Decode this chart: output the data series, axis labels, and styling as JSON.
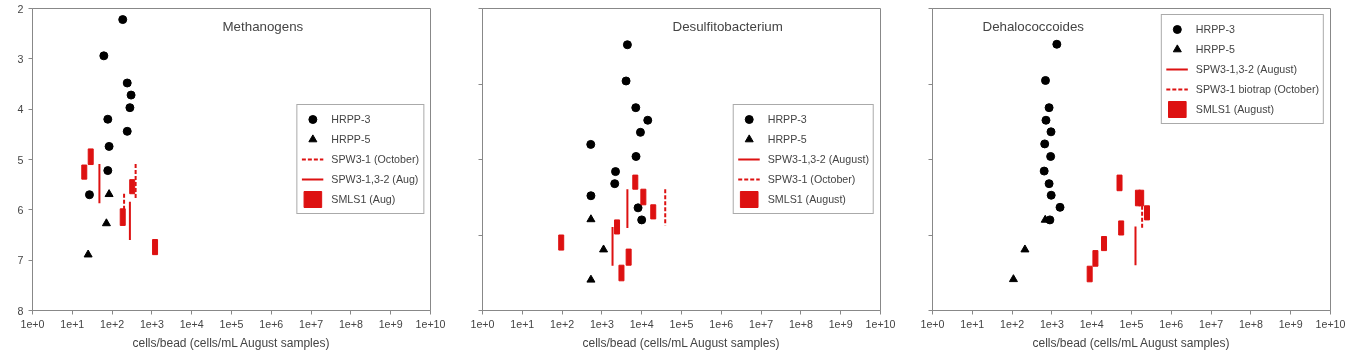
{
  "chart_data": [
    {
      "type": "scatter",
      "title": "Methanogens",
      "xlabel": "cells/bead (cells/mL August samples)",
      "log": "x",
      "xlim": [
        1,
        10000000000
      ],
      "ylim": [
        8,
        2
      ],
      "legend": "right",
      "xticks": [
        {
          "value": 1,
          "label": "1e+0"
        },
        {
          "value": 10,
          "label": "1e+1"
        },
        {
          "value": 100,
          "label": "1e+2"
        },
        {
          "value": 1000,
          "label": "1e+3"
        },
        {
          "value": 10000,
          "label": "1e+4"
        },
        {
          "value": 100000,
          "label": "1e+5"
        },
        {
          "value": 1000000,
          "label": "1e+6"
        },
        {
          "value": 10000000,
          "label": "1e+7"
        },
        {
          "value": 100000000,
          "label": "1e+8"
        },
        {
          "value": 1000000000,
          "label": "1e+9"
        },
        {
          "value": 10000000000,
          "label": "1e+10"
        }
      ],
      "yticks": [
        2,
        3,
        4,
        5,
        6,
        7,
        8
      ],
      "series": [
        {
          "name": "HRPP-3",
          "marker": "circle",
          "color": "#000000",
          "x": [
            185,
            62,
            240,
            300,
            280,
            78,
            240,
            84,
            78,
            27
          ],
          "values": [
            2.22,
            2.94,
            3.48,
            3.72,
            3.97,
            4.2,
            4.44,
            4.74,
            5.22,
            5.7
          ]
        },
        {
          "name": "HRPP-5",
          "marker": "triangle",
          "color": "#000000",
          "x": [
            84,
            72,
            25
          ],
          "values": [
            5.69,
            6.27,
            6.89
          ]
        },
        {
          "name": "SPW3-1 (October)",
          "type": "line",
          "line_style": "dashed",
          "color": "#dd1111",
          "x": [
            390,
            390,
            null,
            200,
            200
          ],
          "values": [
            5.09,
            5.78,
            null,
            5.68,
            5.99
          ]
        },
        {
          "name": "SPW3-1,3-2 (Aug)",
          "type": "line",
          "line_style": "solid",
          "color": "#dd1111",
          "x": [
            48,
            48,
            null,
            280,
            280
          ],
          "values": [
            5.09,
            5.87,
            null,
            5.84,
            6.6
          ]
        },
        {
          "name": "SMLS1 (Aug)",
          "type": "bar",
          "color": "#dd1111",
          "x": [
            20,
            29,
            185,
            320,
            1200
          ],
          "base": [
            5.11,
            4.79,
            5.98,
            5.4,
            6.59
          ],
          "values": [
            0.28,
            0.31,
            0.33,
            0.28,
            0.3
          ]
        }
      ]
    },
    {
      "type": "scatter",
      "title": "Desulfitobacterium",
      "xlabel": "cells/bead (cells/mL August samples)",
      "log": "x",
      "xlim": [
        1,
        10000000000
      ],
      "ylim": [
        8,
        2
      ],
      "legend": "right",
      "tick_labels": "x",
      "xticks": [
        {
          "value": 1,
          "label": "1e+0"
        },
        {
          "value": 10,
          "label": "1e+1"
        },
        {
          "value": 100,
          "label": "1e+2"
        },
        {
          "value": 1000,
          "label": "1e+3"
        },
        {
          "value": 10000,
          "label": "1e+4"
        },
        {
          "value": 100000,
          "label": "1e+5"
        },
        {
          "value": 1000000,
          "label": "1e+6"
        },
        {
          "value": 10000000,
          "label": "1e+7"
        },
        {
          "value": 100000000,
          "label": "1e+8"
        },
        {
          "value": 1000000000,
          "label": "1e+9"
        },
        {
          "value": 10000000000,
          "label": "1e+10"
        }
      ],
      "yticks": [
        {
          "value": 2,
          "label": null
        },
        {
          "value": 3.5,
          "label": null
        },
        {
          "value": 5,
          "label": null
        },
        {
          "value": 6.5,
          "label": null
        },
        {
          "value": 8,
          "label": null
        }
      ],
      "series": [
        {
          "name": "HRPP-3",
          "marker": "circle",
          "color": "#000000",
          "x": [
            4370,
            4050,
            7100,
            14200,
            9300,
            525,
            7200,
            2200,
            2100,
            530,
            8100,
            10000
          ],
          "values": [
            2.72,
            3.44,
            3.97,
            4.22,
            4.46,
            4.7,
            4.94,
            5.24,
            5.48,
            5.72,
            5.96,
            6.2
          ]
        },
        {
          "name": "HRPP-5",
          "marker": "triangle",
          "color": "#000000",
          "x": [
            530,
            1100,
            530
          ],
          "values": [
            6.19,
            6.79,
            7.39
          ]
        },
        {
          "name": "SPW3-1,3-2 (August)",
          "type": "line",
          "line_style": "solid",
          "color": "#dd1111",
          "x": [
            4370,
            4370,
            null,
            1850,
            1850
          ],
          "values": [
            5.59,
            6.36,
            null,
            6.34,
            7.11
          ]
        },
        {
          "name": "SPW3-1 (October)",
          "type": "line",
          "line_style": "dashed",
          "color": "#dd1111",
          "x": [
            39000,
            39000
          ],
          "values": [
            5.59,
            6.31
          ]
        },
        {
          "name": "SMLS1 (August)",
          "type": "bar",
          "color": "#dd1111",
          "x": [
            95,
            2400,
            3100,
            4700,
            6900,
            11000,
            19500
          ],
          "base": [
            6.5,
            6.2,
            7.1,
            6.78,
            5.31,
            5.59,
            5.9
          ],
          "values": [
            0.3,
            0.28,
            0.31,
            0.32,
            0.28,
            0.31,
            0.28
          ]
        }
      ]
    },
    {
      "type": "scatter",
      "title": "Dehalococcoides",
      "xlabel": "cells/bead (cells/mL August samples)",
      "log": "x",
      "xlim": [
        1,
        10000000000
      ],
      "ylim": [
        8,
        2
      ],
      "legend": "top right",
      "tick_labels": "x",
      "xticks": [
        {
          "value": 1,
          "label": "1e+0"
        },
        {
          "value": 10,
          "label": "1e+1"
        },
        {
          "value": 100,
          "label": "1e+2"
        },
        {
          "value": 1000,
          "label": "1e+3"
        },
        {
          "value": 10000,
          "label": "1e+4"
        },
        {
          "value": 100000,
          "label": "1e+5"
        },
        {
          "value": 1000000,
          "label": "1e+6"
        },
        {
          "value": 10000000,
          "label": "1e+7"
        },
        {
          "value": 100000000,
          "label": "1e+8"
        },
        {
          "value": 1000000000,
          "label": "1e+9"
        },
        {
          "value": 10000000000,
          "label": "1e+10"
        }
      ],
      "yticks": [
        {
          "value": 2,
          "label": null
        },
        {
          "value": 3.5,
          "label": null
        },
        {
          "value": 5,
          "label": null
        },
        {
          "value": 6.5,
          "label": null
        },
        {
          "value": 8,
          "label": null
        }
      ],
      "series": [
        {
          "name": "HRPP-3",
          "marker": "circle",
          "color": "#000000",
          "x": [
            1330,
            690,
            850,
            710,
            950,
            660,
            930,
            640,
            850,
            960,
            1600,
            890
          ],
          "values": [
            2.71,
            3.43,
            3.97,
            4.22,
            4.45,
            4.69,
            4.94,
            5.23,
            5.48,
            5.71,
            5.95,
            6.2
          ]
        },
        {
          "name": "HRPP-5",
          "marker": "triangle",
          "color": "#000000",
          "x": [
            680,
            210,
            108
          ],
          "values": [
            6.2,
            6.79,
            7.38
          ]
        },
        {
          "name": "SPW3-1,3-2 (August)",
          "type": "line",
          "line_style": "solid",
          "color": "#dd1111",
          "x": [
            126000,
            126000
          ],
          "values": [
            6.33,
            7.1
          ]
        },
        {
          "name": "SPW3-1 biotrap (October)",
          "type": "line",
          "line_style": "dashed",
          "color": "#dd1111",
          "x": [
            185000,
            185000
          ],
          "values": [
            5.92,
            6.36
          ]
        },
        {
          "name": "SMLS1 (August)",
          "type": "bar",
          "color": "#dd1111",
          "x": [
            8900,
            12400,
            20400,
            50000,
            55000,
            145000,
            175000,
            245000
          ],
          "base": [
            7.12,
            6.81,
            6.53,
            5.31,
            6.22,
            5.61,
            5.61,
            5.92
          ],
          "values": [
            0.31,
            0.31,
            0.28,
            0.31,
            0.28,
            0.31,
            0.31,
            0.28
          ]
        }
      ]
    }
  ]
}
